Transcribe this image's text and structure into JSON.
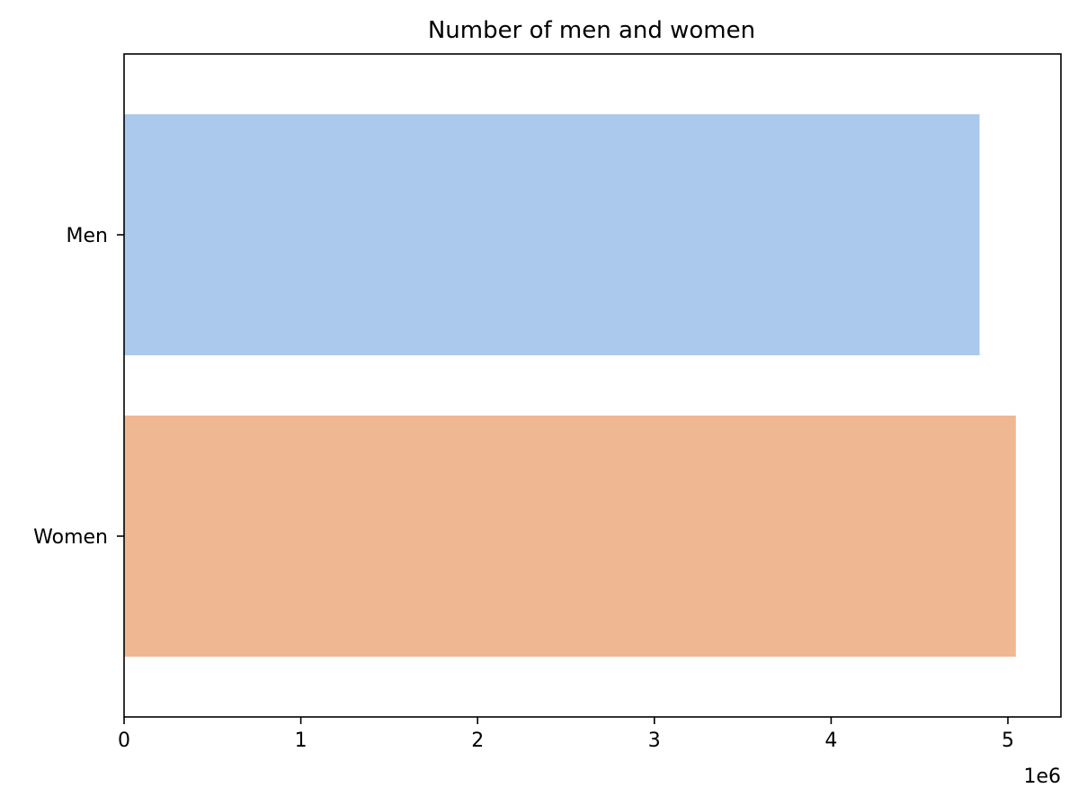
{
  "chart_data": {
    "type": "bar",
    "orientation": "horizontal",
    "title": "Number of men and women",
    "xlabel": "",
    "ylabel": "",
    "categories": [
      "Men",
      "Women"
    ],
    "values": [
      4840000,
      5045000
    ],
    "colors": [
      "#abc9ed",
      "#f0b793"
    ],
    "xlim": [
      0,
      5300000
    ],
    "x_ticks": [
      0,
      1000000,
      2000000,
      3000000,
      4000000,
      5000000
    ],
    "x_tick_labels": [
      "0",
      "1",
      "2",
      "3",
      "4",
      "5"
    ],
    "x_offset_label": "1e6",
    "grid": false,
    "legend": "none"
  }
}
